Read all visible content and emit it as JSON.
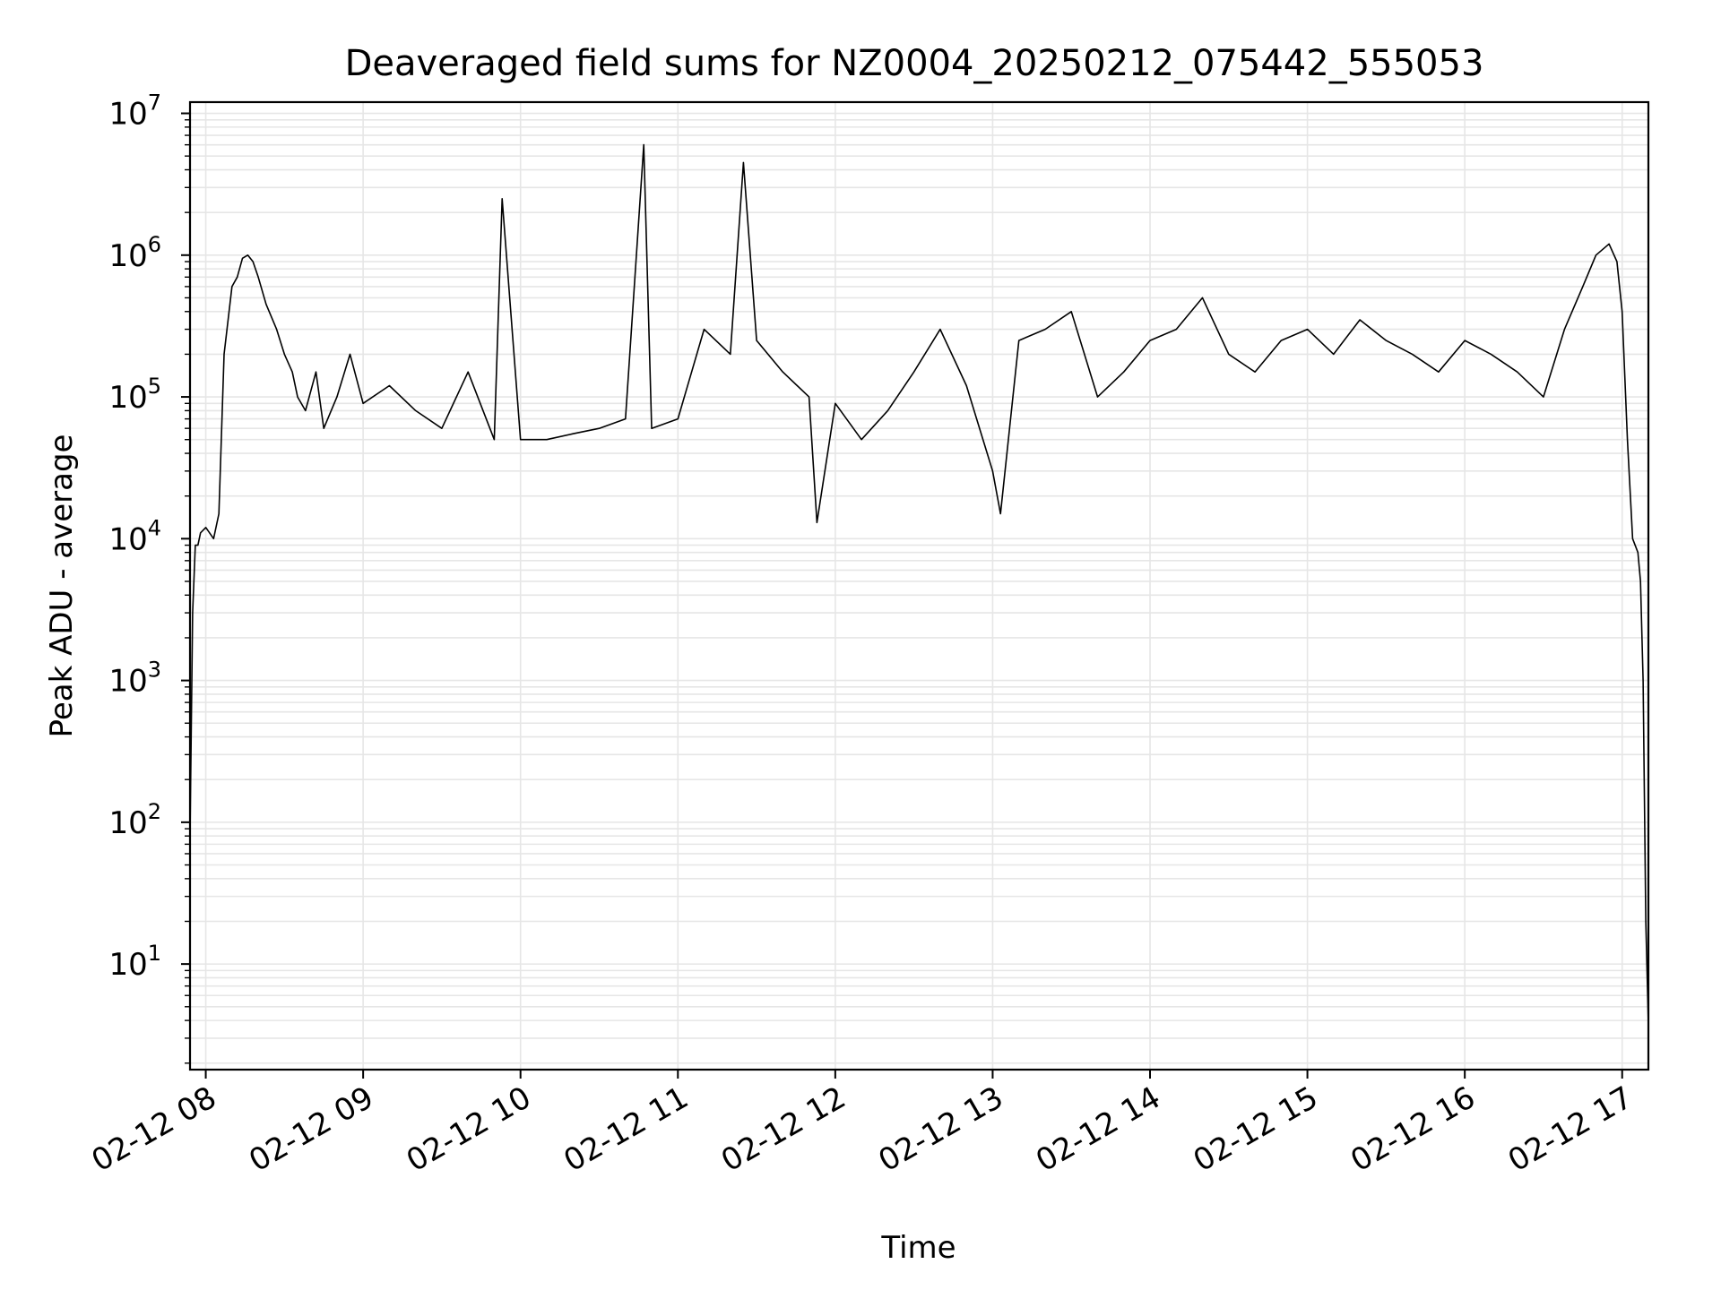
{
  "chart_data": {
    "type": "line",
    "title": "Deaveraged field sums for NZ0004_20250212_075442_555053",
    "xlabel": "Time",
    "ylabel": "Peak ADU - average",
    "x_scale": "time",
    "y_scale": "log",
    "xlim": [
      "2025-02-12 07:54",
      "2025-02-12 17:10"
    ],
    "ylim": [
      1.8,
      12000000
    ],
    "x_ticks": [
      {
        "value": "2025-02-12 08:00",
        "label": "02-12 08"
      },
      {
        "value": "2025-02-12 09:00",
        "label": "02-12 09"
      },
      {
        "value": "2025-02-12 10:00",
        "label": "02-12 10"
      },
      {
        "value": "2025-02-12 11:00",
        "label": "02-12 11"
      },
      {
        "value": "2025-02-12 12:00",
        "label": "02-12 12"
      },
      {
        "value": "2025-02-12 13:00",
        "label": "02-12 13"
      },
      {
        "value": "2025-02-12 14:00",
        "label": "02-12 14"
      },
      {
        "value": "2025-02-12 15:00",
        "label": "02-12 15"
      },
      {
        "value": "2025-02-12 16:00",
        "label": "02-12 16"
      },
      {
        "value": "2025-02-12 17:00",
        "label": "02-12 17"
      }
    ],
    "y_ticks": [
      {
        "value": 10,
        "base": "10",
        "exp": "1"
      },
      {
        "value": 100,
        "base": "10",
        "exp": "2"
      },
      {
        "value": 1000,
        "base": "10",
        "exp": "3"
      },
      {
        "value": 10000,
        "base": "10",
        "exp": "4"
      },
      {
        "value": 100000,
        "base": "10",
        "exp": "5"
      },
      {
        "value": 1000000,
        "base": "10",
        "exp": "6"
      },
      {
        "value": 10000000,
        "base": "10",
        "exp": "7"
      }
    ],
    "grid": true,
    "line_color": "#000000",
    "grid_color": "#e6e6e6",
    "series": [
      {
        "x": [
          "2025-02-12 07:54",
          "2025-02-12 07:55",
          "2025-02-12 07:56",
          "2025-02-12 07:57",
          "2025-02-12 07:58",
          "2025-02-12 08:00",
          "2025-02-12 08:03",
          "2025-02-12 08:05",
          "2025-02-12 08:07",
          "2025-02-12 08:10",
          "2025-02-12 08:12",
          "2025-02-12 08:14",
          "2025-02-12 08:16",
          "2025-02-12 08:18",
          "2025-02-12 08:20",
          "2025-02-12 08:23",
          "2025-02-12 08:27",
          "2025-02-12 08:30",
          "2025-02-12 08:33",
          "2025-02-12 08:35",
          "2025-02-12 08:38",
          "2025-02-12 08:42",
          "2025-02-12 08:45",
          "2025-02-12 08:50",
          "2025-02-12 08:55",
          "2025-02-12 09:00",
          "2025-02-12 09:10",
          "2025-02-12 09:20",
          "2025-02-12 09:30",
          "2025-02-12 09:40",
          "2025-02-12 09:50",
          "2025-02-12 09:53",
          "2025-02-12 10:00",
          "2025-02-12 10:10",
          "2025-02-12 10:20",
          "2025-02-12 10:30",
          "2025-02-12 10:40",
          "2025-02-12 10:47",
          "2025-02-12 10:50",
          "2025-02-12 11:00",
          "2025-02-12 11:10",
          "2025-02-12 11:20",
          "2025-02-12 11:25",
          "2025-02-12 11:30",
          "2025-02-12 11:40",
          "2025-02-12 11:50",
          "2025-02-12 11:53",
          "2025-02-12 12:00",
          "2025-02-12 12:10",
          "2025-02-12 12:20",
          "2025-02-12 12:30",
          "2025-02-12 12:40",
          "2025-02-12 12:50",
          "2025-02-12 13:00",
          "2025-02-12 13:03",
          "2025-02-12 13:10",
          "2025-02-12 13:20",
          "2025-02-12 13:30",
          "2025-02-12 13:40",
          "2025-02-12 13:50",
          "2025-02-12 14:00",
          "2025-02-12 14:10",
          "2025-02-12 14:20",
          "2025-02-12 14:30",
          "2025-02-12 14:40",
          "2025-02-12 14:50",
          "2025-02-12 15:00",
          "2025-02-12 15:10",
          "2025-02-12 15:20",
          "2025-02-12 15:30",
          "2025-02-12 15:40",
          "2025-02-12 15:50",
          "2025-02-12 16:00",
          "2025-02-12 16:10",
          "2025-02-12 16:20",
          "2025-02-12 16:30",
          "2025-02-12 16:38",
          "2025-02-12 16:45",
          "2025-02-12 16:50",
          "2025-02-12 16:55",
          "2025-02-12 16:58",
          "2025-02-12 17:00",
          "2025-02-12 17:02",
          "2025-02-12 17:04",
          "2025-02-12 17:06",
          "2025-02-12 17:07",
          "2025-02-12 17:08",
          "2025-02-12 17:09",
          "2025-02-12 17:10"
        ],
        "y": [
          80,
          3000,
          9000,
          9000,
          11000,
          12000,
          10000,
          15000,
          200000,
          600000,
          700000,
          950000,
          1000000,
          900000,
          700000,
          450000,
          300000,
          200000,
          150000,
          100000,
          80000,
          150000,
          60000,
          100000,
          200000,
          90000,
          120000,
          80000,
          60000,
          150000,
          50000,
          2500000,
          50000,
          50000,
          55000,
          60000,
          70000,
          6000000,
          60000,
          70000,
          300000,
          200000,
          4500000,
          250000,
          150000,
          100000,
          13000,
          90000,
          50000,
          80000,
          150000,
          300000,
          120000,
          30000,
          15000,
          250000,
          300000,
          400000,
          100000,
          150000,
          250000,
          300000,
          500000,
          200000,
          150000,
          250000,
          300000,
          200000,
          350000,
          250000,
          200000,
          150000,
          250000,
          200000,
          150000,
          100000,
          300000,
          600000,
          1000000,
          1200000,
          900000,
          400000,
          50000,
          10000,
          8000,
          5000,
          1000,
          20,
          3.7
        ]
      }
    ]
  }
}
